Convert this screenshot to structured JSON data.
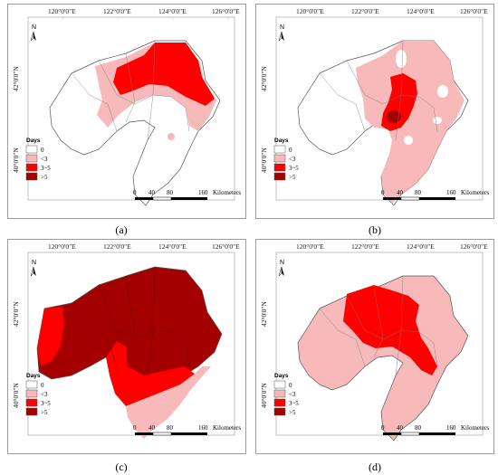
{
  "longitude_labels": [
    "120°0'0\"E",
    "122°0'0\"E",
    "124°0'0\"E",
    "126°0'0\"E"
  ],
  "latitude_labels": [
    "42°0'0\"N",
    "40°0'0\"N"
  ],
  "north_label": "N",
  "legend": {
    "title": "Days",
    "items": [
      {
        "label": "0",
        "color": "#ffffff"
      },
      {
        "label": "<3",
        "color": "#f7b9b9"
      },
      {
        "label": "3~5",
        "color": "#ff0000"
      },
      {
        "label": ">5",
        "color": "#a50000"
      }
    ]
  },
  "scale_bar": {
    "ticks": [
      "0",
      "40",
      "80",
      "160"
    ],
    "unit": "Kilometers"
  },
  "panels": [
    {
      "caption": "(a)"
    },
    {
      "caption": "(b)"
    },
    {
      "caption": "(c)"
    },
    {
      "caption": "(d)"
    }
  ]
}
